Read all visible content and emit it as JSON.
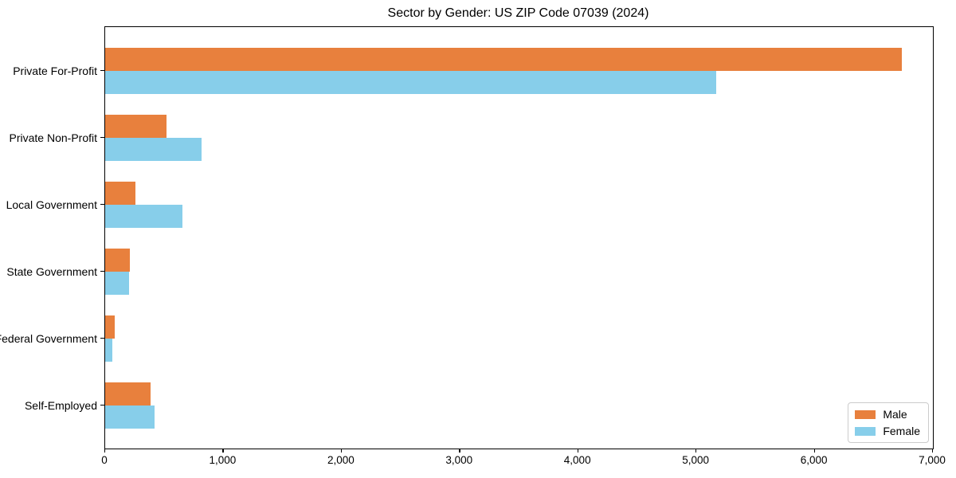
{
  "chart_data": {
    "type": "bar",
    "orientation": "horizontal",
    "title": "Sector by Gender: US ZIP Code 07039 (2024)",
    "categories": [
      "Private For-Profit",
      "Private Non-Profit",
      "Local Government",
      "State Government",
      "Federal Government",
      "Self-Employed"
    ],
    "series": [
      {
        "name": "Male",
        "color": "#e8803d",
        "values": [
          6740,
          520,
          255,
          210,
          80,
          385
        ]
      },
      {
        "name": "Female",
        "color": "#87ceea",
        "values": [
          5170,
          815,
          655,
          205,
          60,
          420
        ]
      }
    ],
    "xlim": [
      0,
      7000
    ],
    "x_ticks": [
      0,
      1000,
      2000,
      3000,
      4000,
      5000,
      6000,
      7000
    ],
    "x_tick_labels": [
      "0",
      "1,000",
      "2,000",
      "3,000",
      "4,000",
      "5,000",
      "6,000",
      "7,000"
    ],
    "legend_position": "lower right",
    "grid": false,
    "axis_color": "#000000",
    "background_color": "#ffffff"
  }
}
